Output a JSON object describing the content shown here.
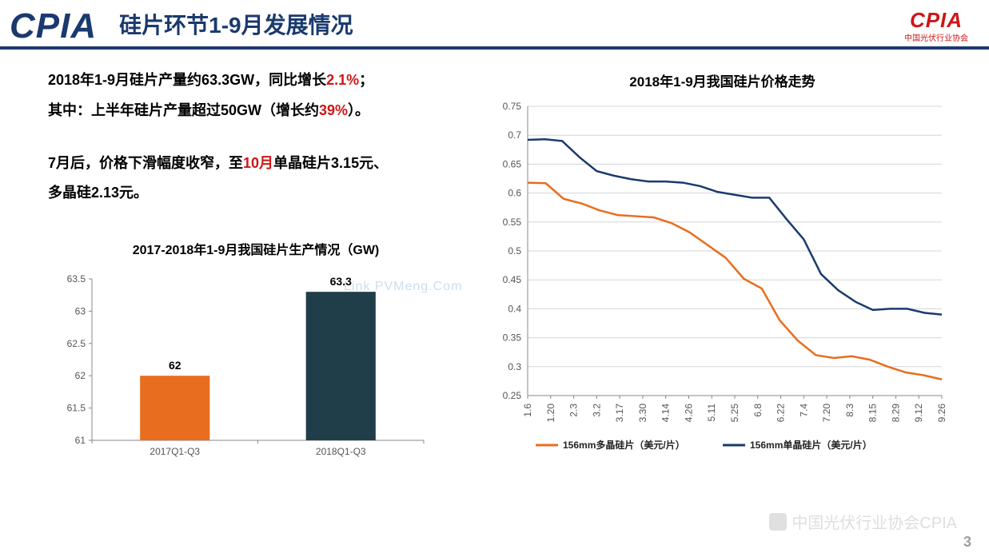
{
  "header": {
    "logo_left": "CPIA",
    "title": "硅片环节1-9月发展情况",
    "logo_right": "CPIA",
    "logo_right_sub": "中国光伏行业协会",
    "title_color": "#1a3a6e",
    "title_fontsize": 28
  },
  "description": {
    "line1_a": "2018年1-9月硅片产量约63.3GW，同比增长",
    "line1_red": "2.1%",
    "line1_b": "；",
    "line2_a": "其中：上半年硅片产量超过50GW（增长约",
    "line2_red": "39%",
    "line2_b": "）。",
    "line3_a": "7月后，价格下滑幅度收窄，至",
    "line3_red": "10月",
    "line3_b": "单晶硅片3.15元、",
    "line4": "多晶硅2.13元。",
    "fontsize": 18,
    "text_color": "#000000",
    "highlight_color": "#cf1515"
  },
  "bar_chart": {
    "type": "bar",
    "title": "2017-2018年1-9月我国硅片生产情况（GW)",
    "title_fontsize": 16,
    "categories": [
      "2017Q1-Q3",
      "2018Q1-Q3"
    ],
    "values": [
      62,
      63.3
    ],
    "bar_colors": [
      "#e86d1f",
      "#203e4a"
    ],
    "ylim": [
      61,
      63.5
    ],
    "ytick_step": 0.5,
    "background_color": "#ffffff",
    "axis_color": "#888888",
    "grid_color": "#d9d9d9",
    "bar_width": 0.42,
    "label_fontsize": 13,
    "value_label_fontsize": 14
  },
  "line_chart": {
    "type": "line",
    "title": "2018年1-9月我国硅片价格走势",
    "title_fontsize": 17,
    "ylabel": "",
    "ylim": [
      0.25,
      0.75
    ],
    "ytick_step": 0.05,
    "x_labels": [
      "1.6",
      "1.20",
      "2.3",
      "3.2",
      "3.17",
      "3.30",
      "4.14",
      "4.26",
      "5.11",
      "5.25",
      "6.8",
      "6.22",
      "7.4",
      "7.20",
      "8.3",
      "8.15",
      "8.29",
      "9.12",
      "9.26"
    ],
    "series": [
      {
        "name": "156mm多晶硅片（美元/片）",
        "color": "#e86d1f",
        "line_width": 2.5,
        "values": [
          0.618,
          0.617,
          0.59,
          0.582,
          0.57,
          0.562,
          0.56,
          0.558,
          0.548,
          0.532,
          0.51,
          0.488,
          0.452,
          0.435,
          0.38,
          0.345,
          0.32,
          0.315,
          0.318,
          0.312,
          0.3,
          0.29,
          0.285,
          0.278
        ]
      },
      {
        "name": "156mm单晶硅片（美元/片）",
        "color": "#1a3a6e",
        "line_width": 2.5,
        "values": [
          0.692,
          0.693,
          0.69,
          0.662,
          0.638,
          0.63,
          0.624,
          0.62,
          0.62,
          0.618,
          0.612,
          0.602,
          0.597,
          0.592,
          0.592,
          0.555,
          0.52,
          0.46,
          0.432,
          0.412,
          0.398,
          0.4,
          0.4,
          0.393,
          0.39
        ]
      }
    ],
    "background_color": "#ffffff",
    "grid_color": "#d5d5d5",
    "axis_color": "#888888",
    "legend_position": "bottom",
    "x_label_rotation": -90,
    "label_fontsize": 12
  },
  "watermark": {
    "wm1": "Link   PVMeng.Com",
    "wm2": "中国光伏行业协会CPIA"
  },
  "page_number": "3"
}
